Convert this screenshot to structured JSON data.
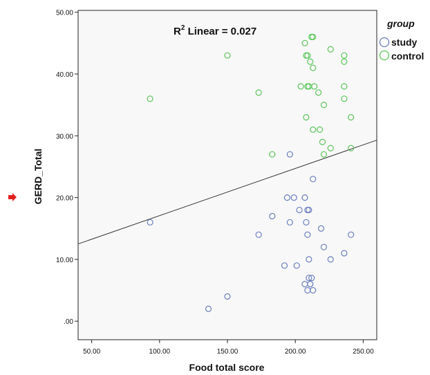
{
  "chart_data": {
    "type": "scatter",
    "xlabel": "Food total score",
    "ylabel": "GERD_Total",
    "xlim": [
      40,
      260
    ],
    "ylim": [
      -3,
      50.3
    ],
    "x_ticks": [
      50,
      100,
      150,
      200,
      250
    ],
    "y_ticks": [
      0,
      10,
      20,
      30,
      40,
      50
    ],
    "x_tick_labels": [
      "50.00",
      "100.00",
      "150.00",
      "200.00",
      "250.00"
    ],
    "y_tick_labels": [
      ".00",
      "10.00",
      "20.00",
      "30.00",
      "40.00",
      "50.00"
    ],
    "grid": false,
    "background": "#f8f8f8",
    "legend": {
      "title": "group",
      "position": "right",
      "entries": [
        {
          "label": "study",
          "color": "#6b7fbf"
        },
        {
          "label": "control",
          "color": "#5cc55c"
        }
      ]
    },
    "annotation": {
      "text_prefix": "R",
      "superscript": "2",
      "text_rest": " Linear = 0.027"
    },
    "fit_line": {
      "x": [
        40,
        260
      ],
      "y": [
        12.5,
        29.3
      ],
      "color": "#333333"
    },
    "series": [
      {
        "name": "study",
        "color": "#6b7fbf",
        "points": [
          [
            93,
            16
          ],
          [
            136,
            2
          ],
          [
            150,
            4
          ],
          [
            173,
            14
          ],
          [
            183,
            17
          ],
          [
            192,
            9
          ],
          [
            194,
            20
          ],
          [
            196,
            16
          ],
          [
            196,
            27
          ],
          [
            199,
            20
          ],
          [
            201,
            9
          ],
          [
            203,
            18
          ],
          [
            207,
            6
          ],
          [
            207,
            20
          ],
          [
            208,
            16
          ],
          [
            209,
            5
          ],
          [
            209,
            14
          ],
          [
            209,
            18
          ],
          [
            210,
            18
          ],
          [
            210,
            7
          ],
          [
            210,
            10
          ],
          [
            211,
            6
          ],
          [
            212,
            7
          ],
          [
            213,
            5
          ],
          [
            213,
            23
          ],
          [
            219,
            15
          ],
          [
            221,
            12
          ],
          [
            226,
            10
          ],
          [
            236,
            11
          ],
          [
            241,
            14
          ]
        ]
      },
      {
        "name": "control",
        "color": "#5cc55c",
        "points": [
          [
            93,
            36
          ],
          [
            150,
            43
          ],
          [
            173,
            37
          ],
          [
            183,
            27
          ],
          [
            204,
            38
          ],
          [
            207,
            45
          ],
          [
            208,
            33
          ],
          [
            208,
            43
          ],
          [
            209,
            43
          ],
          [
            209,
            38
          ],
          [
            210,
            38
          ],
          [
            211,
            42
          ],
          [
            212,
            46
          ],
          [
            213,
            46
          ],
          [
            213,
            41
          ],
          [
            213,
            31
          ],
          [
            214,
            38
          ],
          [
            217,
            37
          ],
          [
            218,
            31
          ],
          [
            220,
            29
          ],
          [
            221,
            35
          ],
          [
            221,
            27
          ],
          [
            226,
            44
          ],
          [
            226,
            28
          ],
          [
            236,
            43
          ],
          [
            236,
            36
          ],
          [
            236,
            38
          ],
          [
            236,
            42
          ],
          [
            241,
            33
          ],
          [
            241,
            28
          ]
        ]
      }
    ]
  },
  "marker": {
    "color": "#e02020"
  }
}
